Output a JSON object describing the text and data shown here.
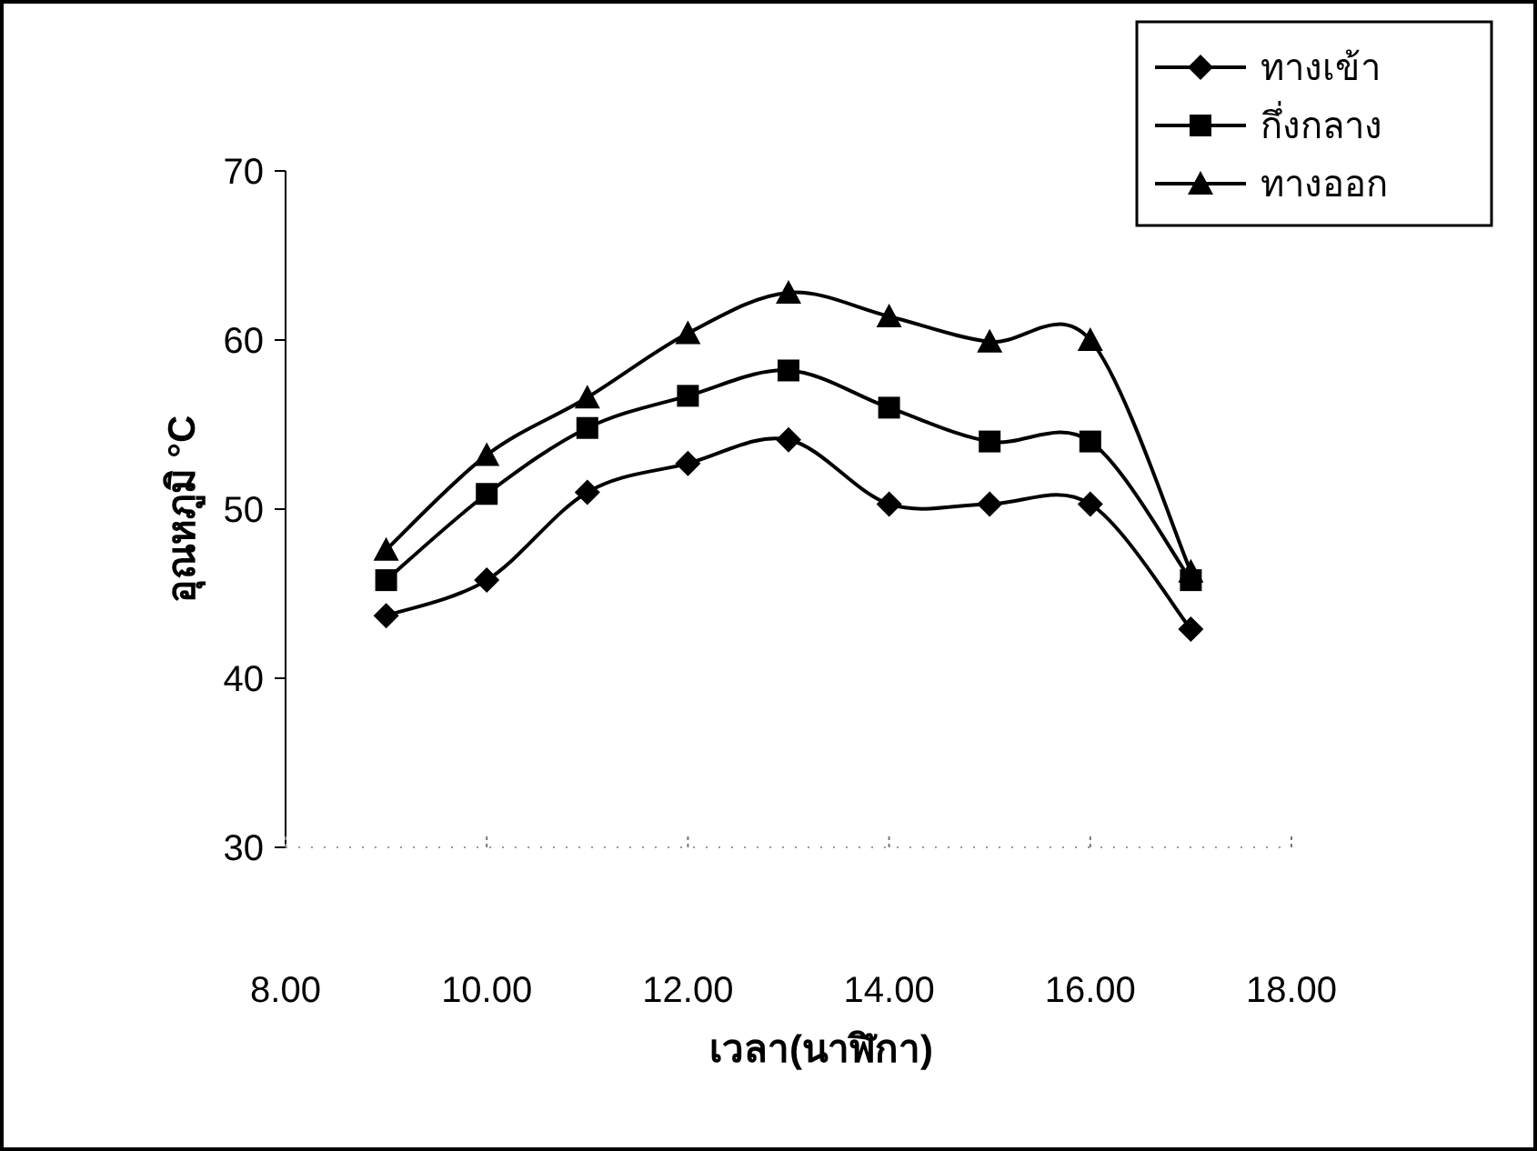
{
  "chart_data": {
    "type": "line",
    "xlabel": "เวลา(นาฬิกา)",
    "ylabel": "อุณหภูมิ °C",
    "x": [
      9,
      10,
      11,
      12,
      13,
      14,
      15,
      16,
      17
    ],
    "series": [
      {
        "name": "ทางเข้า",
        "color": "#000000",
        "marker": "diamond",
        "values": [
          43.7,
          45.8,
          51.0,
          52.7,
          54.1,
          50.3,
          50.3,
          50.3,
          42.9
        ]
      },
      {
        "name": "กึ่งกลาง",
        "color": "#000000",
        "marker": "square",
        "values": [
          45.8,
          50.9,
          54.8,
          56.7,
          58.2,
          56.0,
          54.0,
          54.0,
          45.8
        ]
      },
      {
        "name": "ทางออก",
        "color": "#000000",
        "marker": "triangle",
        "values": [
          47.6,
          53.2,
          56.6,
          60.4,
          62.8,
          61.4,
          59.9,
          60.0,
          46.3
        ]
      }
    ],
    "xlim": [
      8,
      18
    ],
    "xticks": [
      {
        "value": 8,
        "label": "8.00"
      },
      {
        "value": 10,
        "label": "10.00"
      },
      {
        "value": 12,
        "label": "12.00"
      },
      {
        "value": 14,
        "label": "14.00"
      },
      {
        "value": 16,
        "label": "16.00"
      },
      {
        "value": 18,
        "label": "18.00"
      }
    ],
    "ylim": [
      30,
      70
    ],
    "yticks": [
      30,
      40,
      50,
      60,
      70
    ],
    "grid": false,
    "legend": "top right",
    "line_style": "solid"
  }
}
